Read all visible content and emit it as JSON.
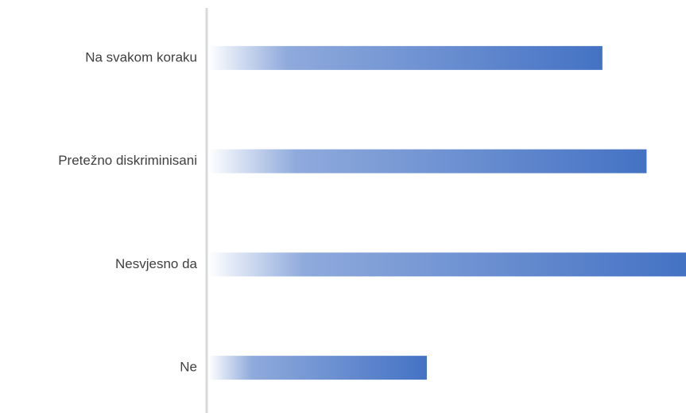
{
  "chart_data": {
    "type": "barh",
    "categories": [
      "Na svakom koraku",
      "Pretežno diskriminisani",
      "Nesvjesno da",
      "Ne"
    ],
    "values": [
      33,
      36.7,
      40,
      18.3
    ],
    "color": "#4472c4",
    "xlim": [
      0,
      40
    ]
  }
}
